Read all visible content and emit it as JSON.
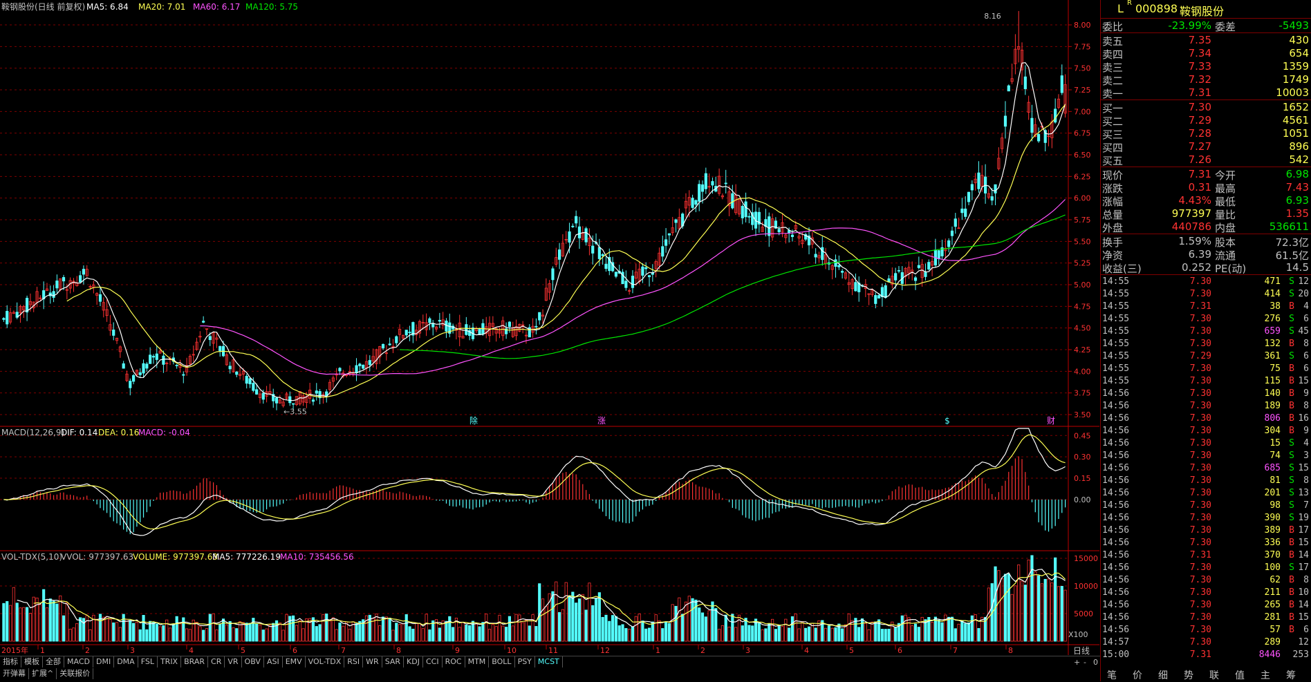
{
  "header": {
    "stock_label": "鞍钢股份(日线 前复权)",
    "ma5_label": "MA5: 6.84",
    "ma20_label": "MA20: 7.01",
    "ma60_label": "MA60: 6.17",
    "ma120_label": "MA120: 5.75",
    "high_marker": "8.16",
    "low_marker": "3.55"
  },
  "macd_header": {
    "name": "MACD(12,26,9)",
    "dif": "DIF: 0.14",
    "dea": "DEA: 0.16",
    "macd": "MACD: -0.04"
  },
  "vol_header": {
    "name": "VOL-TDX(5,10)",
    "vvol": "VVOL: 977397.63",
    "volume": "VOLUME: 977397.63",
    "ma5": "MA5: 777226.19",
    "ma10": "MA10: 735456.56"
  },
  "event_markers": [
    "除",
    "涨",
    "$",
    "财"
  ],
  "x_axis": {
    "year_label": "2015年",
    "months": [
      "1",
      "2",
      "3",
      "4",
      "5",
      "6",
      "7",
      "8",
      "9",
      "10",
      "11",
      "12",
      "1",
      "2",
      "3",
      "4",
      "5",
      "6",
      "7",
      "8"
    ],
    "period_label": "日线",
    "x100_label": "X100",
    "zoom_buttons": [
      "+",
      "-",
      "0"
    ]
  },
  "indicator_tabs": [
    "指标",
    "模板",
    "全部",
    "MACD",
    "DMI",
    "DMA",
    "FSL",
    "TRIX",
    "BRAR",
    "CR",
    "VR",
    "OBV",
    "ASI",
    "EMV",
    "VOL-TDX",
    "RSI",
    "WR",
    "SAR",
    "KDJ",
    "CCI",
    "ROC",
    "MTM",
    "BOLL",
    "PSY",
    "MCST"
  ],
  "bottom_links": [
    "开弹幕",
    "扩展^",
    "关联报价"
  ],
  "colors": {
    "up": "#ff3232",
    "down": "#54ffff",
    "ma5": "#ffffff",
    "ma20": "#ffff54",
    "ma60": "#ff54ff",
    "ma120": "#00e600",
    "grid": "#800000",
    "axis": "#c00000"
  },
  "quote": {
    "code": "000898",
    "name": "鞍钢股份",
    "prefix_l": "L",
    "prefix_r": "R",
    "weibi_label": "委比",
    "weibi": "-23.99%",
    "weicha_label": "委差",
    "weicha": "-5493",
    "asks": [
      {
        "label": "卖五",
        "price": "7.35",
        "vol": "430"
      },
      {
        "label": "卖四",
        "price": "7.34",
        "vol": "654"
      },
      {
        "label": "卖三",
        "price": "7.33",
        "vol": "1359"
      },
      {
        "label": "卖二",
        "price": "7.32",
        "vol": "1749"
      },
      {
        "label": "卖一",
        "price": "7.31",
        "vol": "10003"
      }
    ],
    "bids": [
      {
        "label": "买一",
        "price": "7.30",
        "vol": "1652"
      },
      {
        "label": "买二",
        "price": "7.29",
        "vol": "4561"
      },
      {
        "label": "买三",
        "price": "7.28",
        "vol": "1051"
      },
      {
        "label": "买四",
        "price": "7.27",
        "vol": "896"
      },
      {
        "label": "买五",
        "price": "7.26",
        "vol": "542"
      }
    ],
    "stats1": [
      {
        "l1": "现价",
        "v1": "7.31",
        "l2": "今开",
        "v2": "6.98",
        "c1": "#ff3232",
        "c2": "#00e600"
      },
      {
        "l1": "涨跌",
        "v1": "0.31",
        "l2": "最高",
        "v2": "7.43",
        "c1": "#ff3232",
        "c2": "#ff3232"
      },
      {
        "l1": "涨幅",
        "v1": "4.43%",
        "l2": "最低",
        "v2": "6.93",
        "c1": "#ff3232",
        "c2": "#00e600"
      },
      {
        "l1": "总量",
        "v1": "977397",
        "l2": "量比",
        "v2": "1.35",
        "c1": "#ffff54",
        "c2": "#ff3232"
      },
      {
        "l1": "外盘",
        "v1": "440786",
        "l2": "内盘",
        "v2": "536611",
        "c1": "#ff3232",
        "c2": "#00e600"
      }
    ],
    "stats2": [
      {
        "l1": "换手",
        "v1": "1.59%",
        "l2": "股本",
        "v2": "72.3亿"
      },
      {
        "l1": "净资",
        "v1": "6.39",
        "l2": "流通",
        "v2": "61.5亿"
      },
      {
        "l1": "收益(三)",
        "v1": "0.252",
        "l2": "PE(动)",
        "v2": "14.5"
      }
    ]
  },
  "ticks": [
    {
      "t": "14:55",
      "p": "7.30",
      "v": "471",
      "bs": "S",
      "n": "12"
    },
    {
      "t": "14:55",
      "p": "7.30",
      "v": "414",
      "bs": "S",
      "n": "20"
    },
    {
      "t": "14:55",
      "p": "7.31",
      "v": "38",
      "bs": "B",
      "n": "4"
    },
    {
      "t": "14:55",
      "p": "7.30",
      "v": "276",
      "bs": "S",
      "n": "6"
    },
    {
      "t": "14:55",
      "p": "7.30",
      "v": "659",
      "bs": "S",
      "n": "45"
    },
    {
      "t": "14:55",
      "p": "7.30",
      "v": "132",
      "bs": "B",
      "n": "8"
    },
    {
      "t": "14:55",
      "p": "7.29",
      "v": "361",
      "bs": "S",
      "n": "6"
    },
    {
      "t": "14:55",
      "p": "7.30",
      "v": "75",
      "bs": "B",
      "n": "6"
    },
    {
      "t": "14:55",
      "p": "7.30",
      "v": "115",
      "bs": "B",
      "n": "15"
    },
    {
      "t": "14:56",
      "p": "7.30",
      "v": "140",
      "bs": "B",
      "n": "9"
    },
    {
      "t": "14:56",
      "p": "7.30",
      "v": "189",
      "bs": "B",
      "n": "8"
    },
    {
      "t": "14:56",
      "p": "7.30",
      "v": "806",
      "bs": "B",
      "n": "16"
    },
    {
      "t": "14:56",
      "p": "7.30",
      "v": "304",
      "bs": "B",
      "n": "9"
    },
    {
      "t": "14:56",
      "p": "7.30",
      "v": "15",
      "bs": "S",
      "n": "4"
    },
    {
      "t": "14:56",
      "p": "7.30",
      "v": "74",
      "bs": "S",
      "n": "3"
    },
    {
      "t": "14:56",
      "p": "7.30",
      "v": "685",
      "bs": "S",
      "n": "15"
    },
    {
      "t": "14:56",
      "p": "7.30",
      "v": "81",
      "bs": "S",
      "n": "8"
    },
    {
      "t": "14:56",
      "p": "7.30",
      "v": "201",
      "bs": "S",
      "n": "13"
    },
    {
      "t": "14:56",
      "p": "7.30",
      "v": "98",
      "bs": "S",
      "n": "7"
    },
    {
      "t": "14:56",
      "p": "7.30",
      "v": "390",
      "bs": "S",
      "n": "19"
    },
    {
      "t": "14:56",
      "p": "7.30",
      "v": "389",
      "bs": "B",
      "n": "17"
    },
    {
      "t": "14:56",
      "p": "7.30",
      "v": "336",
      "bs": "B",
      "n": "15"
    },
    {
      "t": "14:56",
      "p": "7.31",
      "v": "370",
      "bs": "B",
      "n": "14"
    },
    {
      "t": "14:56",
      "p": "7.30",
      "v": "100",
      "bs": "S",
      "n": "17"
    },
    {
      "t": "14:56",
      "p": "7.30",
      "v": "62",
      "bs": "B",
      "n": "8"
    },
    {
      "t": "14:56",
      "p": "7.30",
      "v": "211",
      "bs": "B",
      "n": "10"
    },
    {
      "t": "14:56",
      "p": "7.30",
      "v": "265",
      "bs": "B",
      "n": "14"
    },
    {
      "t": "14:56",
      "p": "7.30",
      "v": "281",
      "bs": "B",
      "n": "15"
    },
    {
      "t": "14:56",
      "p": "7.30",
      "v": "57",
      "bs": "B",
      "n": "6"
    },
    {
      "t": "14:57",
      "p": "7.30",
      "v": "289",
      "bs": "",
      "n": "12"
    },
    {
      "t": "15:00",
      "p": "7.31",
      "v": "8446",
      "bs": "",
      "n": "253"
    }
  ],
  "side_tabs": [
    "笔",
    "价",
    "细",
    "势",
    "联",
    "值",
    "主",
    "筹"
  ],
  "chart_data": [
    {
      "type": "candlestick",
      "title": "鞍钢股份(日线 前复权)",
      "ylim": [
        3.5,
        8.0
      ],
      "y_ticks": [
        3.5,
        3.75,
        4.0,
        4.25,
        4.5,
        4.75,
        5.0,
        5.25,
        5.5,
        5.75,
        6.0,
        6.25,
        6.5,
        6.75,
        7.0,
        7.25,
        7.5,
        7.75,
        8.0
      ],
      "close_waypoints": [
        [
          0,
          4.6
        ],
        [
          15,
          4.95
        ],
        [
          25,
          5.15
        ],
        [
          32,
          4.55
        ],
        [
          38,
          3.85
        ],
        [
          45,
          4.2
        ],
        [
          55,
          4.0
        ],
        [
          60,
          4.55
        ],
        [
          68,
          4.1
        ],
        [
          75,
          3.82
        ],
        [
          82,
          3.65
        ],
        [
          90,
          3.7
        ],
        [
          96,
          3.75
        ],
        [
          102,
          4.0
        ],
        [
          110,
          4.1
        ],
        [
          120,
          4.45
        ],
        [
          130,
          4.55
        ],
        [
          140,
          4.45
        ],
        [
          150,
          4.5
        ],
        [
          160,
          4.45
        ],
        [
          165,
          5.15
        ],
        [
          172,
          5.7
        ],
        [
          180,
          5.3
        ],
        [
          188,
          5.0
        ],
        [
          195,
          5.2
        ],
        [
          205,
          5.85
        ],
        [
          212,
          6.25
        ],
        [
          220,
          5.95
        ],
        [
          228,
          5.7
        ],
        [
          240,
          5.55
        ],
        [
          248,
          5.25
        ],
        [
          255,
          5.05
        ],
        [
          262,
          4.85
        ],
        [
          270,
          5.1
        ],
        [
          278,
          5.2
        ],
        [
          285,
          5.6
        ],
        [
          293,
          6.2
        ],
        [
          298,
          6.05
        ],
        [
          302,
          7.2
        ],
        [
          305,
          7.85
        ],
        [
          309,
          6.8
        ],
        [
          315,
          6.75
        ],
        [
          318,
          7.31
        ]
      ],
      "high_label": "8.16",
      "low_label": "3.55"
    },
    {
      "type": "line",
      "title": "MACD(12,26,9)",
      "ylim": [
        -0.35,
        0.5
      ],
      "y_ticks": [
        0.0,
        0.15,
        0.3,
        0.45
      ],
      "series": [
        {
          "name": "DIF",
          "color": "#ffffff"
        },
        {
          "name": "DEA",
          "color": "#ffff54"
        },
        {
          "name": "MACD",
          "color": "#ff54ff"
        }
      ]
    },
    {
      "type": "bar",
      "title": "VOL-TDX(5,10)",
      "ylim": [
        0,
        16000
      ],
      "y_ticks": [
        5000,
        10000,
        15000
      ],
      "unit": "X100"
    }
  ]
}
